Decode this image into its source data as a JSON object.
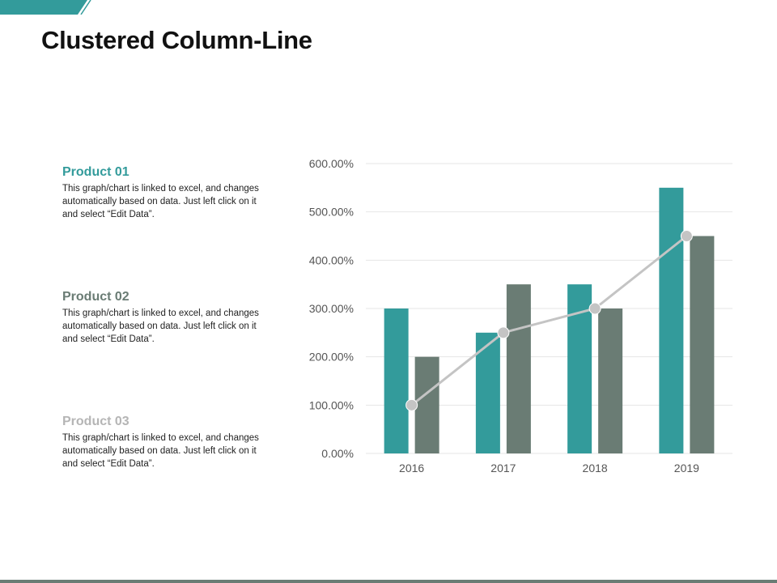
{
  "title": "Clustered Column-Line",
  "colors": {
    "accent": "#339b9b",
    "bar_series_1": "#339b9b",
    "bar_series_2": "#6a7c74",
    "line": "#c4c4c4",
    "product_01_title": "#339b9b",
    "product_02_title": "#6a7c74",
    "product_03_title": "#b5b5b5",
    "bottom_bar": "#6a7c74"
  },
  "products": [
    {
      "title": "Product 01",
      "description": "This graph/chart is linked to excel, and changes automatically based on data. Just left click on it and select “Edit Data”."
    },
    {
      "title": "Product 02",
      "description": "This graph/chart is linked to excel, and changes automatically based on data. Just left click on it and select “Edit Data”."
    },
    {
      "title": "Product 03",
      "description": "This graph/chart is linked to excel, and changes automatically based on data. Just left click on it and select “Edit Data”."
    }
  ],
  "chart_data": {
    "type": "bar",
    "categories": [
      "2016",
      "2017",
      "2018",
      "2019"
    ],
    "series": [
      {
        "type": "bar",
        "values": [
          300,
          250,
          350,
          550
        ]
      },
      {
        "type": "bar",
        "values": [
          200,
          350,
          300,
          450
        ]
      },
      {
        "type": "line",
        "values": [
          100,
          250,
          300,
          450
        ]
      }
    ],
    "ylim": [
      0,
      600
    ],
    "yticks": [
      "0.00%",
      "100.00%",
      "200.00%",
      "300.00%",
      "400.00%",
      "500.00%",
      "600.00%"
    ],
    "grid": true,
    "legend": "none"
  }
}
